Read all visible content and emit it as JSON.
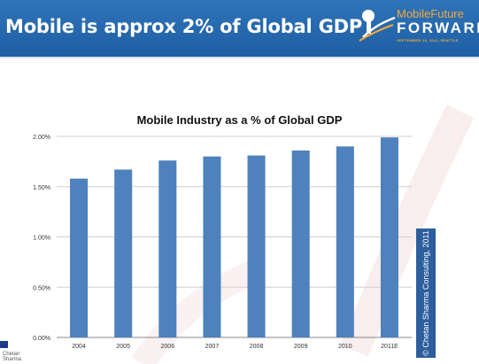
{
  "header": {
    "title": "Mobile is approx 2% of Global GDP",
    "logo_line1": "MobileFuture",
    "logo_line2": "FORWARD",
    "logo_line3": "SEPTEMBER 13, 2011, SEATTLE"
  },
  "credit": "© Chetan Sharma Consulting, 2011",
  "corner_logo_text": "Chetan Sharma",
  "colors": {
    "header": "#2f73b8",
    "bar": "#4f81bd",
    "accent": "#f4a93a"
  },
  "chart_data": {
    "type": "bar",
    "title": "Mobile Industry as a % of Global GDP",
    "xlabel": "",
    "ylabel": "",
    "categories": [
      "2004",
      "2005",
      "2006",
      "2007",
      "2008",
      "2009",
      "2010",
      "2011E"
    ],
    "values": [
      1.58,
      1.67,
      1.76,
      1.8,
      1.81,
      1.86,
      1.9,
      1.99
    ],
    "ylim": [
      0,
      2
    ],
    "yticks": [
      "0.00%",
      "0.50%",
      "1.00%",
      "1.50%",
      "2.00%"
    ],
    "grid": true,
    "legend": "none"
  }
}
